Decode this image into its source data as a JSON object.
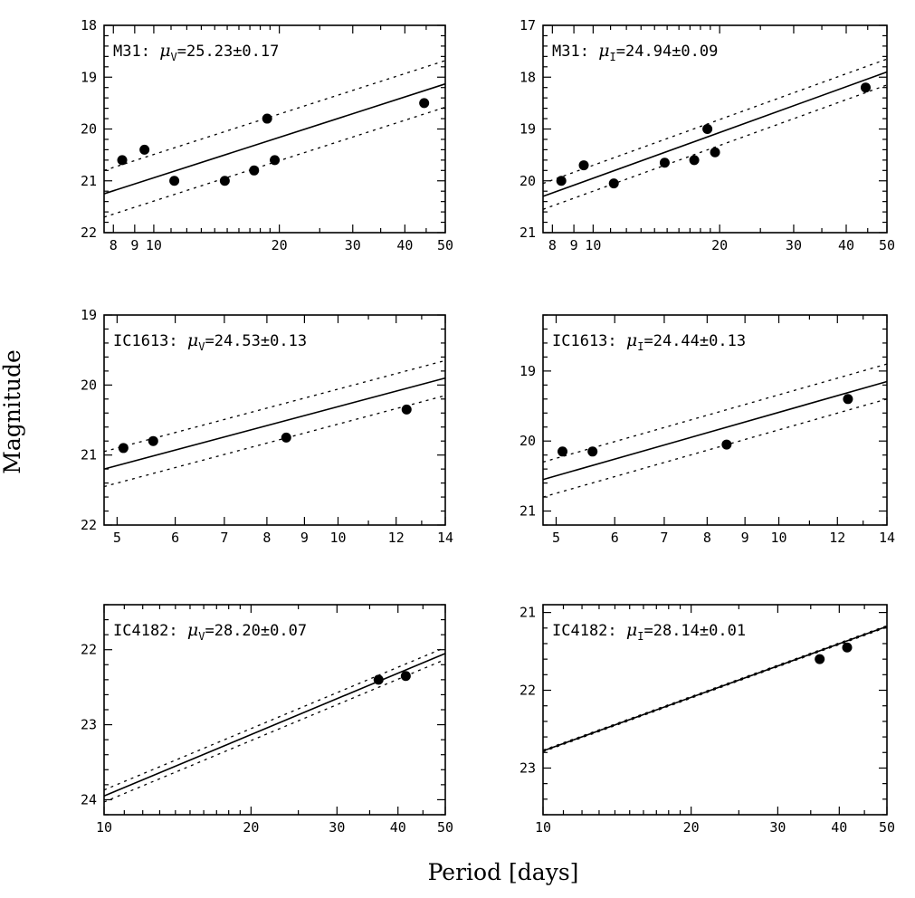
{
  "figure": {
    "xlabel": "Period [days]",
    "ylabel": "Magnitude"
  },
  "chart_data": [
    {
      "type": "scatter",
      "galaxy": "M31",
      "band": "V",
      "label_prefix": "M31: ",
      "label_mu": "μ",
      "label_sub": "V",
      "label_value": "=25.23±0.17",
      "xscale": "log",
      "xlim": [
        7.6,
        50
      ],
      "ylim": [
        22,
        18
      ],
      "xticks": [
        {
          "v": 8,
          "t": "8"
        },
        {
          "v": 9,
          "t": "9"
        },
        {
          "v": 10,
          "t": "10"
        },
        {
          "v": 20,
          "t": "20"
        },
        {
          "v": 30,
          "t": "30"
        },
        {
          "v": 40,
          "t": "40"
        },
        {
          "v": 50,
          "t": "50"
        }
      ],
      "yticks": [
        {
          "v": 18,
          "t": "18"
        },
        {
          "v": 19,
          "t": "19"
        },
        {
          "v": 20,
          "t": "20"
        },
        {
          "v": 21,
          "t": "21"
        },
        {
          "v": 22,
          "t": "22"
        }
      ],
      "points": [
        {
          "x": 8.4,
          "y": 20.6
        },
        {
          "x": 9.5,
          "y": 20.4
        },
        {
          "x": 11.2,
          "y": 21.0
        },
        {
          "x": 14.8,
          "y": 21.0
        },
        {
          "x": 17.4,
          "y": 20.8
        },
        {
          "x": 18.7,
          "y": 19.8
        },
        {
          "x": 19.5,
          "y": 20.6
        },
        {
          "x": 44.5,
          "y": 19.5
        }
      ],
      "fit": {
        "x": [
          7.6,
          50
        ],
        "y": [
          21.25,
          19.13
        ]
      },
      "band_offset": 0.45
    },
    {
      "type": "scatter",
      "galaxy": "M31",
      "band": "I",
      "label_prefix": "M31: ",
      "label_mu": "μ",
      "label_sub": "I",
      "label_value": "=24.94±0.09",
      "xscale": "log",
      "xlim": [
        7.6,
        50
      ],
      "ylim": [
        21,
        17
      ],
      "xticks": [
        {
          "v": 8,
          "t": "8"
        },
        {
          "v": 9,
          "t": "9"
        },
        {
          "v": 10,
          "t": "10"
        },
        {
          "v": 20,
          "t": "20"
        },
        {
          "v": 30,
          "t": "30"
        },
        {
          "v": 40,
          "t": "40"
        },
        {
          "v": 50,
          "t": "50"
        }
      ],
      "yticks": [
        {
          "v": 17,
          "t": "17"
        },
        {
          "v": 18,
          "t": "18"
        },
        {
          "v": 19,
          "t": "19"
        },
        {
          "v": 20,
          "t": "20"
        },
        {
          "v": 21,
          "t": "21"
        }
      ],
      "points": [
        {
          "x": 8.4,
          "y": 20.0
        },
        {
          "x": 9.5,
          "y": 19.7
        },
        {
          "x": 11.2,
          "y": 20.05
        },
        {
          "x": 14.8,
          "y": 19.65
        },
        {
          "x": 17.4,
          "y": 19.6
        },
        {
          "x": 18.7,
          "y": 19.0
        },
        {
          "x": 19.5,
          "y": 19.45
        },
        {
          "x": 44.5,
          "y": 18.2
        }
      ],
      "fit": {
        "x": [
          7.6,
          50
        ],
        "y": [
          20.3,
          17.9
        ]
      },
      "band_offset": 0.25
    },
    {
      "type": "scatter",
      "galaxy": "IC1613",
      "band": "V",
      "label_prefix": "IC1613: ",
      "label_mu": "μ",
      "label_sub": "V",
      "label_value": "=24.53±0.13",
      "xscale": "log",
      "xlim": [
        4.8,
        14
      ],
      "ylim": [
        22,
        19
      ],
      "xticks": [
        {
          "v": 5,
          "t": "5"
        },
        {
          "v": 6,
          "t": "6"
        },
        {
          "v": 7,
          "t": "7"
        },
        {
          "v": 8,
          "t": "8"
        },
        {
          "v": 9,
          "t": "9"
        },
        {
          "v": 10,
          "t": "10"
        },
        {
          "v": 12,
          "t": "12"
        },
        {
          "v": 14,
          "t": "14"
        }
      ],
      "yticks": [
        {
          "v": 19,
          "t": "19"
        },
        {
          "v": 20,
          "t": "20"
        },
        {
          "v": 21,
          "t": "21"
        },
        {
          "v": 22,
          "t": "22"
        }
      ],
      "points": [
        {
          "x": 5.1,
          "y": 20.9
        },
        {
          "x": 5.6,
          "y": 20.8
        },
        {
          "x": 8.5,
          "y": 20.75
        },
        {
          "x": 12.4,
          "y": 20.35
        }
      ],
      "fit": {
        "x": [
          4.8,
          14
        ],
        "y": [
          21.2,
          19.9
        ]
      },
      "band_offset": 0.25
    },
    {
      "type": "scatter",
      "galaxy": "IC1613",
      "band": "I",
      "label_prefix": "IC1613: ",
      "label_mu": "μ",
      "label_sub": "I",
      "label_value": "=24.44±0.13",
      "xscale": "log",
      "xlim": [
        4.8,
        14
      ],
      "ylim": [
        21.2,
        18.2
      ],
      "xticks": [
        {
          "v": 5,
          "t": "5"
        },
        {
          "v": 6,
          "t": "6"
        },
        {
          "v": 7,
          "t": "7"
        },
        {
          "v": 8,
          "t": "8"
        },
        {
          "v": 9,
          "t": "9"
        },
        {
          "v": 10,
          "t": "10"
        },
        {
          "v": 12,
          "t": "12"
        },
        {
          "v": 14,
          "t": "14"
        }
      ],
      "yticks": [
        {
          "v": 19,
          "t": "19"
        },
        {
          "v": 20,
          "t": "20"
        },
        {
          "v": 21,
          "t": "21"
        }
      ],
      "points": [
        {
          "x": 5.1,
          "y": 20.15
        },
        {
          "x": 5.6,
          "y": 20.15
        },
        {
          "x": 8.5,
          "y": 20.05
        },
        {
          "x": 12.4,
          "y": 19.4
        }
      ],
      "fit": {
        "x": [
          4.8,
          14
        ],
        "y": [
          20.55,
          19.15
        ]
      },
      "band_offset": 0.25
    },
    {
      "type": "scatter",
      "galaxy": "IC4182",
      "band": "V",
      "label_prefix": "IC4182: ",
      "label_mu": "μ",
      "label_sub": "V",
      "label_value": "=28.20±0.07",
      "xscale": "log",
      "xlim": [
        10,
        50
      ],
      "ylim": [
        24.2,
        21.4
      ],
      "xticks": [
        {
          "v": 10,
          "t": "10"
        },
        {
          "v": 20,
          "t": "20"
        },
        {
          "v": 30,
          "t": "30"
        },
        {
          "v": 40,
          "t": "40"
        },
        {
          "v": 50,
          "t": "50"
        }
      ],
      "yticks": [
        {
          "v": 22,
          "t": "22"
        },
        {
          "v": 23,
          "t": "23"
        },
        {
          "v": 24,
          "t": "24"
        }
      ],
      "points": [
        {
          "x": 36.5,
          "y": 22.4
        },
        {
          "x": 41.5,
          "y": 22.35
        }
      ],
      "fit": {
        "x": [
          10,
          50
        ],
        "y": [
          23.95,
          22.05
        ]
      },
      "band_offset": 0.08
    },
    {
      "type": "scatter",
      "galaxy": "IC4182",
      "band": "I",
      "label_prefix": "IC4182: ",
      "label_mu": "μ",
      "label_sub": "I",
      "label_value": "=28.14±0.01",
      "xscale": "log",
      "xlim": [
        10,
        50
      ],
      "ylim": [
        23.6,
        20.9
      ],
      "xticks": [
        {
          "v": 10,
          "t": "10"
        },
        {
          "v": 20,
          "t": "20"
        },
        {
          "v": 30,
          "t": "30"
        },
        {
          "v": 40,
          "t": "40"
        },
        {
          "v": 50,
          "t": "50"
        }
      ],
      "yticks": [
        {
          "v": 21,
          "t": "21"
        },
        {
          "v": 22,
          "t": "22"
        },
        {
          "v": 23,
          "t": "23"
        }
      ],
      "points": [
        {
          "x": 36.5,
          "y": 21.6
        },
        {
          "x": 41.5,
          "y": 21.45
        }
      ],
      "fit": {
        "x": [
          10,
          50
        ],
        "y": [
          22.78,
          21.18
        ]
      },
      "band_offset": 0.01
    }
  ]
}
